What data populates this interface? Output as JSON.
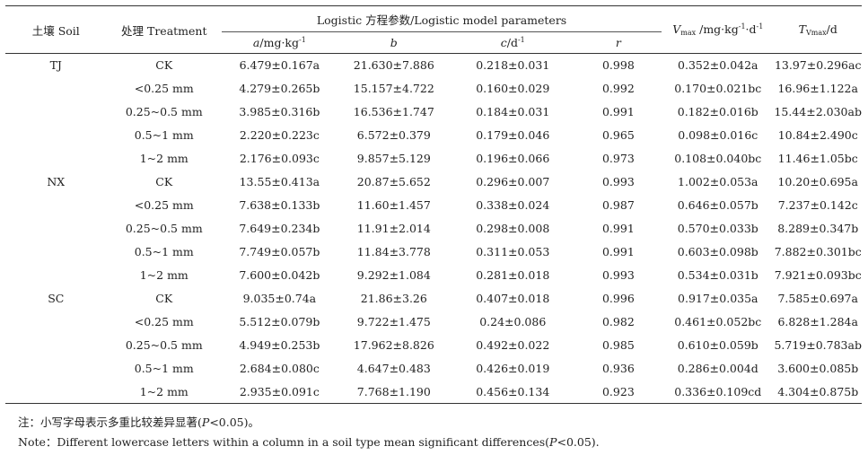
{
  "header": {
    "soil": "土壤 Soil",
    "treatment": "处理 Treatment",
    "group": "Logistic 方程参数/Logistic model parameters",
    "a_var": "a",
    "a_unit": "/mg·kg",
    "a_exp": "-1",
    "b_var": "b",
    "c_var": "c",
    "c_unit": "/d",
    "c_exp": "-1",
    "r_var": "r",
    "vmax_var": "V",
    "vmax_sub": "max",
    "vmax_unit1": " /mg·kg",
    "vmax_exp1": "-1",
    "vmax_unit2": "·d",
    "vmax_exp2": "-1",
    "tvmax_var": "T",
    "tvmax_sub": "Vmax",
    "tvmax_unit": "/d"
  },
  "rows": [
    {
      "soil": "TJ",
      "treatment": "CK",
      "a": "6.479±0.167a",
      "b": "21.630±7.886",
      "c": "0.218±0.031",
      "r": "0.998",
      "vmax": "0.352±0.042a",
      "tvmax": "13.97±0.296ac"
    },
    {
      "soil": "",
      "treatment": "<0.25 mm",
      "a": "4.279±0.265b",
      "b": "15.157±4.722",
      "c": "0.160±0.029",
      "r": "0.992",
      "vmax": "0.170±0.021bc",
      "tvmax": "16.96±1.122a"
    },
    {
      "soil": "",
      "treatment": "0.25~0.5 mm",
      "a": "3.985±0.316b",
      "b": "16.536±1.747",
      "c": "0.184±0.031",
      "r": "0.991",
      "vmax": "0.182±0.016b",
      "tvmax": "15.44±2.030ab"
    },
    {
      "soil": "",
      "treatment": "0.5~1 mm",
      "a": "2.220±0.223c",
      "b": "6.572±0.379",
      "c": "0.179±0.046",
      "r": "0.965",
      "vmax": "0.098±0.016c",
      "tvmax": "10.84±2.490c"
    },
    {
      "soil": "",
      "treatment": "1~2 mm",
      "a": "2.176±0.093c",
      "b": "9.857±5.129",
      "c": "0.196±0.066",
      "r": "0.973",
      "vmax": "0.108±0.040bc",
      "tvmax": "11.46±1.05bc"
    },
    {
      "soil": "NX",
      "treatment": "CK",
      "a": "13.55±0.413a",
      "b": "20.87±5.652",
      "c": "0.296±0.007",
      "r": "0.993",
      "vmax": "1.002±0.053a",
      "tvmax": "10.20±0.695a"
    },
    {
      "soil": "",
      "treatment": "<0.25 mm",
      "a": "7.638±0.133b",
      "b": "11.60±1.457",
      "c": "0.338±0.024",
      "r": "0.987",
      "vmax": "0.646±0.057b",
      "tvmax": "7.237±0.142c"
    },
    {
      "soil": "",
      "treatment": "0.25~0.5 mm",
      "a": "7.649±0.234b",
      "b": "11.91±2.014",
      "c": "0.298±0.008",
      "r": "0.991",
      "vmax": "0.570±0.033b",
      "tvmax": "8.289±0.347b"
    },
    {
      "soil": "",
      "treatment": "0.5~1 mm",
      "a": "7.749±0.057b",
      "b": "11.84±3.778",
      "c": "0.311±0.053",
      "r": "0.991",
      "vmax": "0.603±0.098b",
      "tvmax": "7.882±0.301bc"
    },
    {
      "soil": "",
      "treatment": "1~2 mm",
      "a": "7.600±0.042b",
      "b": "9.292±1.084",
      "c": "0.281±0.018",
      "r": "0.993",
      "vmax": "0.534±0.031b",
      "tvmax": "7.921±0.093bc"
    },
    {
      "soil": "SC",
      "treatment": "CK",
      "a": "9.035±0.74a",
      "b": "21.86±3.26",
      "c": "0.407±0.018",
      "r": "0.996",
      "vmax": "0.917±0.035a",
      "tvmax": "7.585±0.697a"
    },
    {
      "soil": "",
      "treatment": "<0.25 mm",
      "a": "5.512±0.079b",
      "b": "9.722±1.475",
      "c": "0.24±0.086",
      "r": "0.982",
      "vmax": "0.461±0.052bc",
      "tvmax": "6.828±1.284a"
    },
    {
      "soil": "",
      "treatment": "0.25~0.5 mm",
      "a": "4.949±0.253b",
      "b": "17.962±8.826",
      "c": "0.492±0.022",
      "r": "0.985",
      "vmax": "0.610±0.059b",
      "tvmax": "5.719±0.783ab"
    },
    {
      "soil": "",
      "treatment": "0.5~1 mm",
      "a": "2.684±0.080c",
      "b": "4.647±0.483",
      "c": "0.426±0.019",
      "r": "0.936",
      "vmax": "0.286±0.004d",
      "tvmax": "3.600±0.085b"
    },
    {
      "soil": "",
      "treatment": "1~2 mm",
      "a": "2.935±0.091c",
      "b": "7.768±1.190",
      "c": "0.456±0.134",
      "r": "0.923",
      "vmax": "0.336±0.109cd",
      "tvmax": "4.304±0.875b"
    }
  ],
  "notes": {
    "cn_prefix": "注：小写字母表示多重比较差异显著(",
    "cn_p": "P",
    "cn_suffix": "<0.05)。",
    "en_prefix": "Note：Different lowercase letters within a column in a soil type mean significant differences(",
    "en_p": "P",
    "en_suffix": "<0.05)."
  }
}
